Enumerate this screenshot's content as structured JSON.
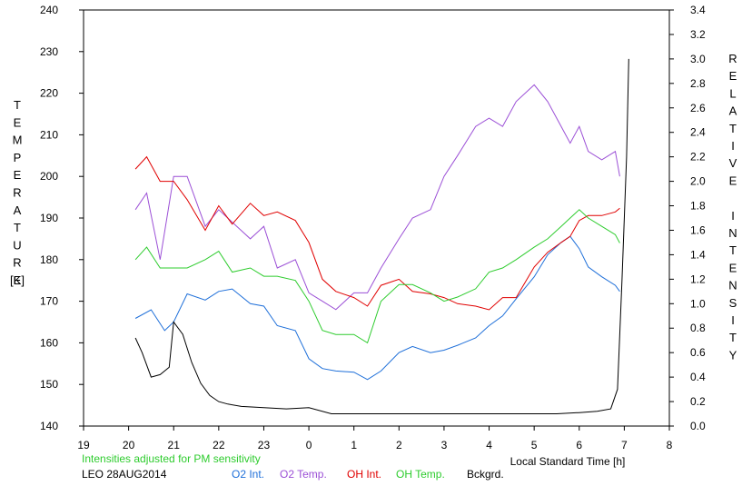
{
  "chart_data": {
    "type": "line",
    "xlabel": "Local Standard Time [h]",
    "ylabel_left": "TEMPERATURE",
    "ylabel_left_unit": "[K]",
    "ylabel_right": "RELATIVE INTENSITY",
    "x_range": [
      19,
      8
    ],
    "x_ticks": [
      "19",
      "20",
      "21",
      "22",
      "23",
      "0",
      "1",
      "2",
      "3",
      "4",
      "5",
      "6",
      "7",
      "8"
    ],
    "y_left_range": [
      140,
      240
    ],
    "y_left_ticks": [
      "140",
      "150",
      "160",
      "170",
      "180",
      "190",
      "200",
      "210",
      "220",
      "230",
      "240"
    ],
    "y_right_range": [
      0,
      3.4
    ],
    "y_right_ticks": [
      "0.0",
      "0.2",
      "0.4",
      "0.6",
      "0.8",
      "1.0",
      "1.2",
      "1.4",
      "1.6",
      "1.8",
      "2.0",
      "2.2",
      "2.4",
      "2.6",
      "2.8",
      "3.0",
      "3.2",
      "3.4"
    ],
    "note": "Intensities adjusted for PM sensitivity",
    "station": "LEO 28AUG2014",
    "grid": false,
    "series": [
      {
        "name": "O2 Int.",
        "color": "#1e6fd9",
        "axis": "right",
        "x": [
          20.15,
          20.5,
          20.8,
          21.0,
          21.3,
          21.7,
          22.0,
          22.3,
          22.7,
          23.0,
          23.3,
          23.7,
          0.0,
          0.3,
          0.6,
          1.0,
          1.3,
          1.6,
          2.0,
          2.3,
          2.7,
          3.0,
          3.3,
          3.7,
          4.0,
          4.3,
          4.6,
          5.0,
          5.3,
          5.6,
          5.8,
          6.0,
          6.2,
          6.5,
          6.8,
          6.9
        ],
        "y": [
          0.88,
          0.95,
          0.78,
          0.85,
          1.08,
          1.03,
          1.1,
          1.12,
          1.0,
          0.98,
          0.82,
          0.78,
          0.55,
          0.47,
          0.45,
          0.44,
          0.38,
          0.45,
          0.6,
          0.65,
          0.6,
          0.62,
          0.66,
          0.72,
          0.82,
          0.9,
          1.04,
          1.22,
          1.4,
          1.5,
          1.55,
          1.45,
          1.3,
          1.22,
          1.15,
          1.1
        ]
      },
      {
        "name": "O2 Temp.",
        "color": "#9b4fd6",
        "axis": "left",
        "x": [
          20.15,
          20.4,
          20.7,
          21.0,
          21.3,
          21.7,
          22.0,
          22.3,
          22.7,
          23.0,
          23.3,
          23.7,
          0.0,
          0.3,
          0.6,
          1.0,
          1.3,
          1.6,
          2.0,
          2.3,
          2.7,
          3.0,
          3.3,
          3.7,
          4.0,
          4.3,
          4.6,
          5.0,
          5.3,
          5.6,
          5.8,
          6.0,
          6.2,
          6.5,
          6.8,
          6.9
        ],
        "y": [
          192,
          196,
          180,
          200,
          200,
          188,
          192,
          189,
          185,
          188,
          178,
          180,
          172,
          170,
          168,
          172,
          172,
          178,
          185,
          190,
          192,
          200,
          205,
          212,
          214,
          212,
          218,
          222,
          218,
          212,
          208,
          212,
          206,
          204,
          206,
          200
        ]
      },
      {
        "name": "OH Int.",
        "color": "#e00000",
        "axis": "right",
        "x": [
          20.15,
          20.4,
          20.7,
          21.0,
          21.3,
          21.7,
          22.0,
          22.3,
          22.7,
          23.0,
          23.3,
          23.7,
          0.0,
          0.3,
          0.6,
          1.0,
          1.3,
          1.6,
          2.0,
          2.3,
          2.7,
          3.0,
          3.3,
          3.7,
          4.0,
          4.3,
          4.6,
          5.0,
          5.3,
          5.6,
          5.8,
          6.0,
          6.2,
          6.5,
          6.8,
          6.9
        ],
        "y": [
          2.1,
          2.2,
          2.0,
          2.0,
          1.85,
          1.6,
          1.8,
          1.65,
          1.82,
          1.72,
          1.75,
          1.68,
          1.5,
          1.2,
          1.1,
          1.05,
          0.98,
          1.15,
          1.2,
          1.1,
          1.08,
          1.05,
          1.0,
          0.98,
          0.95,
          1.05,
          1.05,
          1.3,
          1.42,
          1.5,
          1.55,
          1.68,
          1.72,
          1.72,
          1.75,
          1.78
        ]
      },
      {
        "name": "OH Temp.",
        "color": "#2ecc2e",
        "axis": "left",
        "x": [
          20.15,
          20.4,
          20.7,
          21.0,
          21.3,
          21.7,
          22.0,
          22.3,
          22.7,
          23.0,
          23.3,
          23.7,
          0.0,
          0.3,
          0.6,
          1.0,
          1.3,
          1.6,
          2.0,
          2.3,
          2.7,
          3.0,
          3.3,
          3.7,
          4.0,
          4.3,
          4.6,
          5.0,
          5.3,
          5.6,
          5.8,
          6.0,
          6.2,
          6.5,
          6.8,
          6.9
        ],
        "y": [
          180,
          183,
          178,
          178,
          178,
          180,
          182,
          177,
          178,
          176,
          176,
          175,
          170,
          163,
          162,
          162,
          160,
          170,
          174,
          174,
          172,
          170,
          171,
          173,
          177,
          178,
          180,
          183,
          185,
          188,
          190,
          192,
          190,
          188,
          186,
          184
        ]
      },
      {
        "name": "Bckgrd.",
        "color": "#000000",
        "axis": "right",
        "x": [
          20.15,
          20.3,
          20.5,
          20.7,
          20.9,
          21.0,
          21.2,
          21.4,
          21.6,
          21.8,
          22.0,
          22.2,
          22.5,
          23.0,
          23.5,
          0.0,
          0.5,
          1.0,
          1.5,
          2.0,
          2.5,
          3.0,
          3.5,
          4.0,
          4.5,
          5.0,
          5.5,
          6.0,
          6.4,
          6.7,
          6.85,
          6.95,
          7.05,
          7.1
        ],
        "y": [
          0.72,
          0.6,
          0.4,
          0.42,
          0.48,
          0.85,
          0.75,
          0.52,
          0.35,
          0.25,
          0.2,
          0.18,
          0.16,
          0.15,
          0.14,
          0.15,
          0.1,
          0.1,
          0.1,
          0.1,
          0.1,
          0.1,
          0.1,
          0.1,
          0.1,
          0.1,
          0.1,
          0.11,
          0.12,
          0.14,
          0.3,
          1.2,
          2.2,
          3.0
        ]
      }
    ]
  }
}
